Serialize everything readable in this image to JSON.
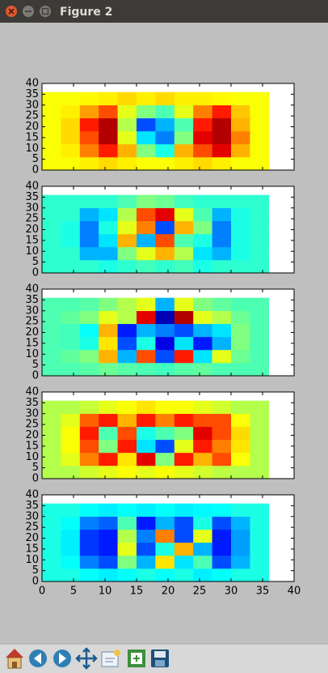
{
  "window": {
    "title": "Figure 2"
  },
  "chart_data": [
    {
      "type": "heatmap",
      "colormap": "jet",
      "clim": [
        0,
        1
      ],
      "extent": [
        0,
        36,
        0,
        36
      ],
      "xlim": [
        0,
        40
      ],
      "ylim": [
        0,
        40
      ],
      "xticks": [
        0,
        5,
        10,
        15,
        20,
        25,
        30,
        35,
        40
      ],
      "yticks": [
        0,
        5,
        10,
        15,
        20,
        25,
        30,
        35,
        40
      ],
      "show_xticklabels": false,
      "z": [
        [
          0.62,
          0.62,
          0.64,
          0.66,
          0.64,
          0.62,
          0.62,
          0.64,
          0.66,
          0.64,
          0.62,
          0.62
        ],
        [
          0.62,
          0.64,
          0.75,
          0.85,
          0.7,
          0.5,
          0.4,
          0.7,
          0.8,
          0.9,
          0.7,
          0.62
        ],
        [
          0.62,
          0.66,
          0.8,
          0.95,
          0.6,
          0.35,
          0.25,
          0.5,
          0.9,
          0.95,
          0.75,
          0.62
        ],
        [
          0.62,
          0.66,
          0.85,
          0.95,
          0.55,
          0.2,
          0.3,
          0.45,
          0.85,
          0.95,
          0.7,
          0.62
        ],
        [
          0.62,
          0.64,
          0.72,
          0.8,
          0.6,
          0.5,
          0.45,
          0.6,
          0.75,
          0.85,
          0.68,
          0.62
        ],
        [
          0.62,
          0.62,
          0.63,
          0.64,
          0.66,
          0.64,
          0.66,
          0.64,
          0.64,
          0.63,
          0.62,
          0.62
        ]
      ]
    },
    {
      "type": "heatmap",
      "colormap": "jet",
      "clim": [
        0,
        1
      ],
      "extent": [
        0,
        36,
        0,
        36
      ],
      "xlim": [
        0,
        40
      ],
      "ylim": [
        0,
        40
      ],
      "xticks": [
        0,
        5,
        10,
        15,
        20,
        25,
        30,
        35,
        40
      ],
      "yticks": [
        0,
        5,
        10,
        15,
        20,
        25,
        30,
        35,
        40
      ],
      "show_xticklabels": false,
      "z": [
        [
          0.42,
          0.42,
          0.42,
          0.4,
          0.42,
          0.44,
          0.42,
          0.44,
          0.4,
          0.42,
          0.42,
          0.42
        ],
        [
          0.42,
          0.42,
          0.3,
          0.3,
          0.5,
          0.6,
          0.7,
          0.55,
          0.35,
          0.3,
          0.4,
          0.42
        ],
        [
          0.42,
          0.4,
          0.25,
          0.35,
          0.7,
          0.3,
          0.8,
          0.45,
          0.4,
          0.25,
          0.4,
          0.42
        ],
        [
          0.42,
          0.4,
          0.25,
          0.4,
          0.6,
          0.75,
          0.2,
          0.7,
          0.5,
          0.25,
          0.4,
          0.42
        ],
        [
          0.42,
          0.42,
          0.3,
          0.35,
          0.55,
          0.8,
          0.9,
          0.6,
          0.45,
          0.3,
          0.4,
          0.42
        ],
        [
          0.42,
          0.42,
          0.42,
          0.42,
          0.45,
          0.5,
          0.48,
          0.44,
          0.42,
          0.42,
          0.42,
          0.42
        ]
      ]
    },
    {
      "type": "heatmap",
      "colormap": "jet",
      "clim": [
        0,
        1
      ],
      "extent": [
        0,
        36,
        0,
        36
      ],
      "xlim": [
        0,
        40
      ],
      "ylim": [
        0,
        40
      ],
      "xticks": [
        0,
        5,
        10,
        15,
        20,
        25,
        30,
        35,
        40
      ],
      "yticks": [
        0,
        5,
        10,
        15,
        20,
        25,
        30,
        35,
        40
      ],
      "show_xticklabels": false,
      "z": [
        [
          0.45,
          0.45,
          0.46,
          0.48,
          0.46,
          0.45,
          0.44,
          0.46,
          0.47,
          0.45,
          0.45,
          0.45
        ],
        [
          0.45,
          0.47,
          0.5,
          0.7,
          0.3,
          0.8,
          0.2,
          0.85,
          0.35,
          0.6,
          0.48,
          0.45
        ],
        [
          0.45,
          0.44,
          0.4,
          0.65,
          0.2,
          0.4,
          0.1,
          0.35,
          0.15,
          0.3,
          0.5,
          0.45
        ],
        [
          0.45,
          0.44,
          0.38,
          0.7,
          0.15,
          0.3,
          0.25,
          0.2,
          0.3,
          0.35,
          0.5,
          0.45
        ],
        [
          0.45,
          0.47,
          0.5,
          0.6,
          0.55,
          0.9,
          0.05,
          0.95,
          0.6,
          0.55,
          0.48,
          0.45
        ],
        [
          0.45,
          0.45,
          0.46,
          0.5,
          0.55,
          0.6,
          0.3,
          0.6,
          0.5,
          0.47,
          0.45,
          0.45
        ]
      ]
    },
    {
      "type": "heatmap",
      "colormap": "jet",
      "clim": [
        0,
        1
      ],
      "extent": [
        0,
        36,
        0,
        36
      ],
      "xlim": [
        0,
        40
      ],
      "ylim": [
        0,
        40
      ],
      "xticks": [
        0,
        5,
        10,
        15,
        20,
        25,
        30,
        35,
        40
      ],
      "yticks": [
        0,
        5,
        10,
        15,
        20,
        25,
        30,
        35,
        40
      ],
      "show_xticklabels": false,
      "z": [
        [
          0.55,
          0.55,
          0.58,
          0.6,
          0.62,
          0.6,
          0.62,
          0.6,
          0.58,
          0.56,
          0.55,
          0.55
        ],
        [
          0.55,
          0.6,
          0.75,
          0.85,
          0.65,
          0.9,
          0.5,
          0.85,
          0.7,
          0.8,
          0.62,
          0.55
        ],
        [
          0.55,
          0.62,
          0.8,
          0.5,
          0.85,
          0.35,
          0.2,
          0.6,
          0.85,
          0.75,
          0.65,
          0.55
        ],
        [
          0.55,
          0.62,
          0.85,
          0.45,
          0.8,
          0.4,
          0.45,
          0.5,
          0.9,
          0.8,
          0.66,
          0.55
        ],
        [
          0.55,
          0.6,
          0.78,
          0.85,
          0.7,
          0.85,
          0.75,
          0.85,
          0.8,
          0.8,
          0.62,
          0.55
        ],
        [
          0.55,
          0.55,
          0.57,
          0.6,
          0.62,
          0.65,
          0.62,
          0.62,
          0.6,
          0.58,
          0.55,
          0.55
        ]
      ]
    },
    {
      "type": "heatmap",
      "colormap": "jet",
      "clim": [
        0,
        1
      ],
      "extent": [
        0,
        36,
        0,
        36
      ],
      "xlim": [
        0,
        40
      ],
      "ylim": [
        0,
        40
      ],
      "xticks": [
        0,
        5,
        10,
        15,
        20,
        25,
        30,
        35,
        40
      ],
      "yticks": [
        0,
        5,
        10,
        15,
        20,
        25,
        30,
        35,
        40
      ],
      "show_xticklabels": true,
      "z": [
        [
          0.4,
          0.4,
          0.38,
          0.36,
          0.38,
          0.4,
          0.38,
          0.4,
          0.36,
          0.38,
          0.4,
          0.4
        ],
        [
          0.4,
          0.38,
          0.25,
          0.2,
          0.5,
          0.3,
          0.65,
          0.35,
          0.45,
          0.2,
          0.3,
          0.4
        ],
        [
          0.4,
          0.36,
          0.18,
          0.15,
          0.6,
          0.2,
          0.4,
          0.7,
          0.3,
          0.15,
          0.28,
          0.4
        ],
        [
          0.4,
          0.36,
          0.18,
          0.15,
          0.55,
          0.25,
          0.75,
          0.2,
          0.6,
          0.15,
          0.28,
          0.4
        ],
        [
          0.4,
          0.38,
          0.25,
          0.22,
          0.45,
          0.15,
          0.3,
          0.2,
          0.4,
          0.2,
          0.3,
          0.4
        ],
        [
          0.4,
          0.4,
          0.38,
          0.36,
          0.38,
          0.36,
          0.38,
          0.36,
          0.37,
          0.38,
          0.4,
          0.4
        ]
      ]
    }
  ]
}
